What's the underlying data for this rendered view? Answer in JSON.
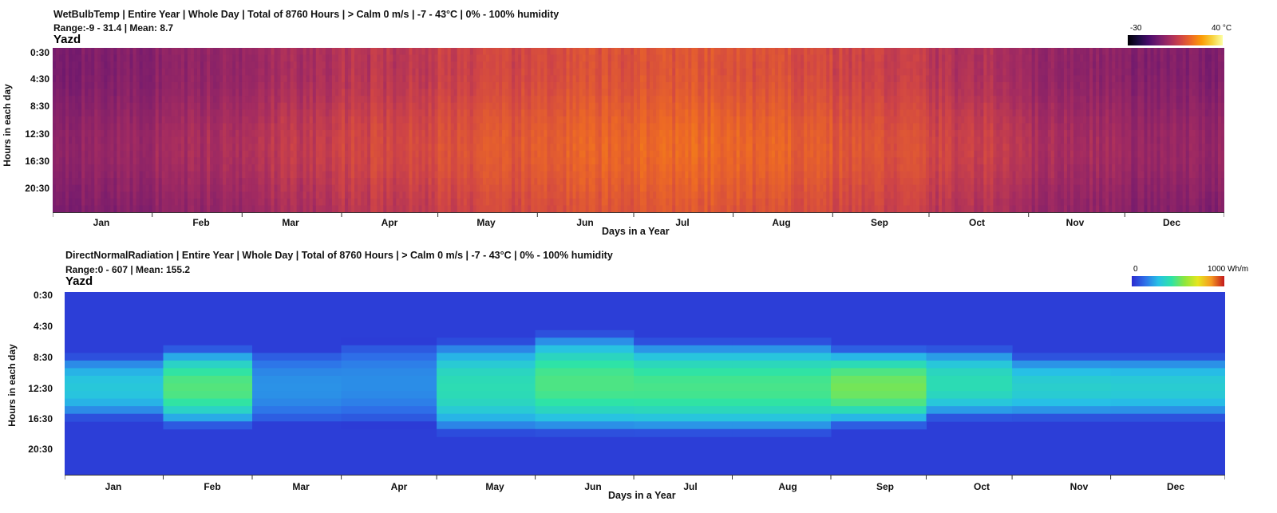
{
  "chart_data": [
    {
      "type": "heatmap",
      "title": "WetBulbTemp | Entire Year | Whole Day | Total of 8760 Hours | > Calm 0 m/s | -7 - 43°C | 0% - 100% humidity",
      "subtitle": "Range:-9 - 31.4 | Mean: 8.7",
      "location": "Yazd",
      "xlabel": "Days in a Year",
      "ylabel": "Hours in each day",
      "x_ticks": [
        "Jan",
        "Feb",
        "Mar",
        "Apr",
        "May",
        "Jun",
        "Jul",
        "Aug",
        "Sep",
        "Oct",
        "Nov",
        "Dec"
      ],
      "y_ticks": [
        "0:30",
        "4:30",
        "8:30",
        "12:30",
        "16:30",
        "20:30"
      ],
      "legend_min": "-30",
      "legend_max": "40 °C",
      "colormap": "inferno",
      "value_range": [
        -9,
        31.4
      ],
      "mean": 8.7,
      "monthly_mean_estimate": [
        -1,
        2,
        6,
        10,
        13,
        16,
        18,
        17,
        14,
        10,
        4,
        0
      ]
    },
    {
      "type": "heatmap",
      "title": "DirectNormalRadiation | Entire Year | Whole Day | Total of 8760 Hours | > Calm 0 m/s | -7 - 43°C | 0% - 100% humidity",
      "subtitle": "Range:0 - 607 | Mean: 155.2",
      "location": "Yazd",
      "xlabel": "Days in a Year",
      "ylabel": "Hours in each day",
      "x_ticks": [
        "Jan",
        "Feb",
        "Mar",
        "Apr",
        "May",
        "Jun",
        "Jul",
        "Aug",
        "Sep",
        "Oct",
        "Nov",
        "Dec"
      ],
      "y_ticks": [
        "0:30",
        "4:30",
        "8:30",
        "12:30",
        "16:30",
        "20:30"
      ],
      "legend_min": "0",
      "legend_max": "1000 Wh/m",
      "colormap": "jet",
      "value_range": [
        0,
        607
      ],
      "mean": 155.2,
      "months": [
        {
          "month": "Jan",
          "days": 31,
          "sunrise": 8,
          "sunset": 16,
          "peak": 330
        },
        {
          "month": "Feb",
          "days": 28,
          "sunrise": 7,
          "sunset": 17,
          "peak": 510
        },
        {
          "month": "Mar",
          "days": 28,
          "sunrise": 7,
          "sunset": 17,
          "peak": 210
        },
        {
          "month": "Apr",
          "days": 30,
          "sunrise": 6,
          "sunset": 17,
          "peak": 200
        },
        {
          "month": "May",
          "days": 31,
          "sunrise": 6,
          "sunset": 18,
          "peak": 420
        },
        {
          "month": "Jun",
          "days": 31,
          "sunrise": 5,
          "sunset": 18,
          "peak": 500
        },
        {
          "month": "Jul",
          "days": 31,
          "sunrise": 6,
          "sunset": 18,
          "peak": 490
        },
        {
          "month": "Aug",
          "days": 31,
          "sunrise": 6,
          "sunset": 18,
          "peak": 490
        },
        {
          "month": "Sep",
          "days": 30,
          "sunrise": 7,
          "sunset": 17,
          "peak": 560
        },
        {
          "month": "Oct",
          "days": 27,
          "sunrise": 7,
          "sunset": 16,
          "peak": 420
        },
        {
          "month": "Nov",
          "days": 31,
          "sunrise": 8,
          "sunset": 16,
          "peak": 360
        },
        {
          "month": "Dec",
          "days": 36,
          "sunrise": 8,
          "sunset": 16,
          "peak": 350
        }
      ]
    }
  ]
}
